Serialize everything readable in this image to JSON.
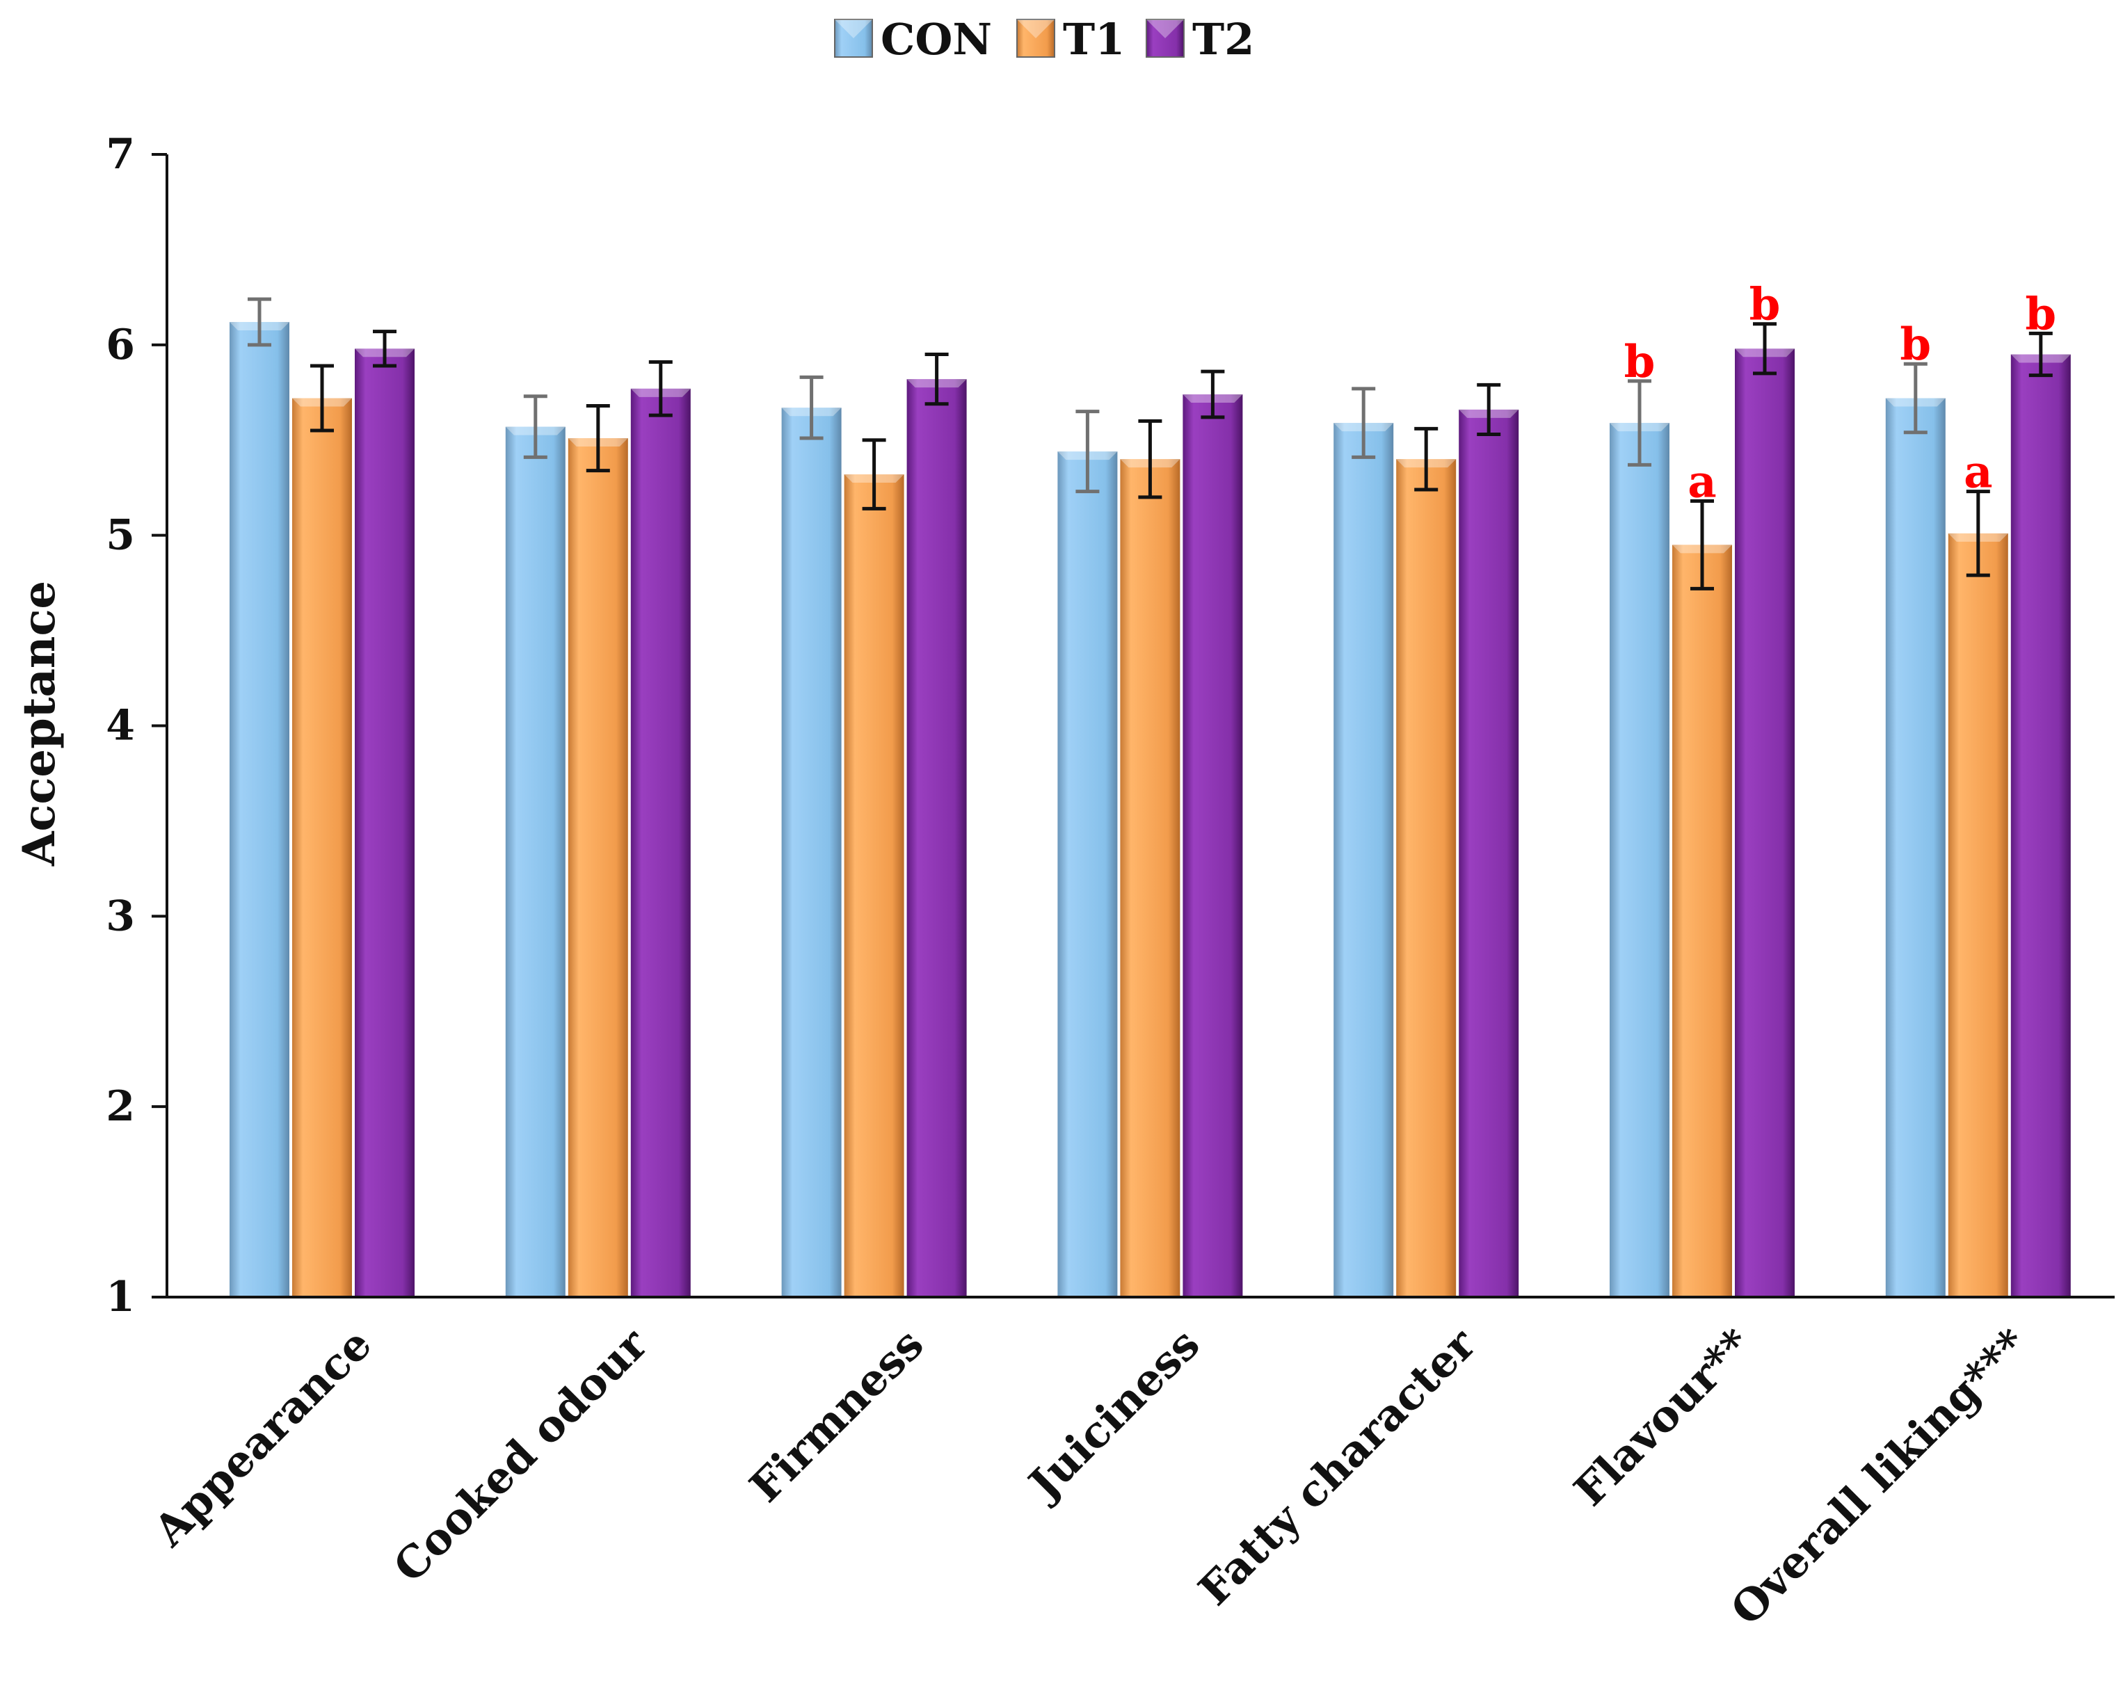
{
  "chart_data": {
    "type": "bar",
    "title": "",
    "xlabel": "",
    "ylabel": "Acceptance",
    "ylim": [
      1,
      7
    ],
    "yticks": [
      "1",
      "2",
      "3",
      "4",
      "5",
      "6",
      "7"
    ],
    "legend_position": "top-center",
    "categories": [
      "Appearance",
      "Cooked odour",
      "Firmness",
      "Juiciness",
      "Fatty character",
      "Flavour**",
      "Overall liking***"
    ],
    "series": [
      {
        "name": "CON",
        "color": "#8cc4ee",
        "values": [
          6.12,
          5.57,
          5.67,
          5.44,
          5.59,
          5.59,
          5.72
        ],
        "errors": [
          0.12,
          0.16,
          0.16,
          0.21,
          0.18,
          0.22,
          0.18
        ],
        "sig": [
          "",
          "",
          "",
          "",
          "",
          "b",
          "b"
        ]
      },
      {
        "name": "T1",
        "color": "#f4a052",
        "values": [
          5.72,
          5.51,
          5.32,
          5.4,
          5.4,
          4.95,
          5.01
        ],
        "errors": [
          0.17,
          0.17,
          0.18,
          0.2,
          0.16,
          0.23,
          0.22
        ],
        "sig": [
          "",
          "",
          "",
          "",
          "",
          "a",
          "a"
        ]
      },
      {
        "name": "T2",
        "color": "#8a2fae",
        "values": [
          5.98,
          5.77,
          5.82,
          5.74,
          5.66,
          5.98,
          5.95
        ],
        "errors": [
          0.09,
          0.14,
          0.13,
          0.12,
          0.13,
          0.13,
          0.11
        ],
        "sig": [
          "",
          "",
          "",
          "",
          "",
          "b",
          "b"
        ]
      }
    ]
  }
}
